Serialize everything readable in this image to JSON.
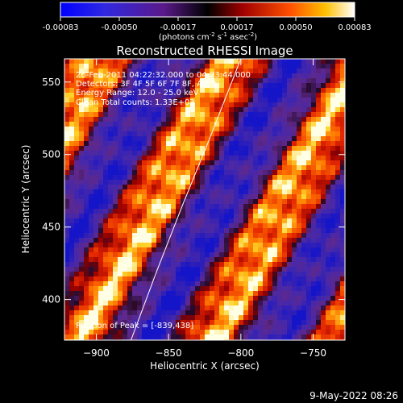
{
  "chart_data": {
    "type": "heatmap",
    "title": "Reconstructed RHESSI Image",
    "xlabel": "Heliocentric X (arcsec)",
    "ylabel": "Heliocentric Y (arcsec)",
    "xlim": [
      -922,
      -728
    ],
    "ylim": [
      372,
      566
    ],
    "x_ticks": [
      -900,
      -850,
      -800,
      -750
    ],
    "y_ticks": [
      400,
      450,
      500,
      550
    ],
    "colorbar": {
      "range": [
        -0.00083,
        0.00083
      ],
      "ticks": [
        "-0.00083",
        "-0.00050",
        "-0.00017",
        "0.00017",
        "0.00050",
        "0.00083"
      ],
      "unit_text": "(photons cm",
      "unit_exp1": "-2",
      "unit_mid": " s",
      "unit_exp2": "-1",
      "unit_mid2": " asec",
      "unit_exp3": "-2",
      "unit_close": ")"
    },
    "annotations": {
      "time": "26-Feb-2011 04:22:32.000 to 04:23:44.000",
      "detectors": "Detectors: 3F 4F 5F 6F 7F 8F, Att 0",
      "energy": "Energy Range: 12.0 - 25.0 keV",
      "clean": "Clean      Total counts: 1.33E+03",
      "peak": "Position of Peak = [-839,438]"
    },
    "limb_curve": [
      [
        -876,
        372
      ],
      [
        -858,
        420
      ],
      [
        -840,
        466
      ],
      [
        -822,
        510
      ],
      [
        -800,
        566
      ]
    ],
    "footer": "9-May-2022 08:26"
  }
}
